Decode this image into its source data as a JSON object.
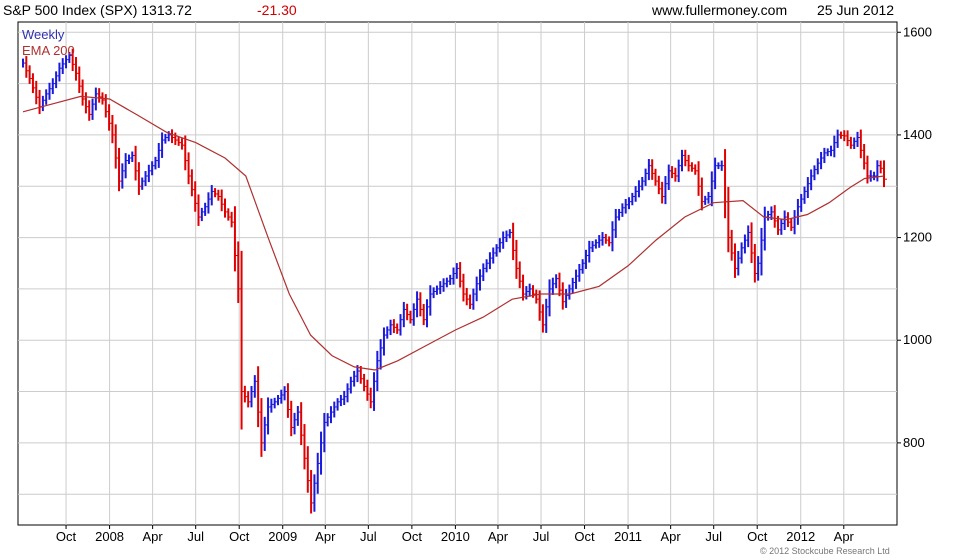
{
  "header": {
    "title": "S&P 500 Index (SPX) 1313.72",
    "change": "-21.30",
    "site": "www.fullermoney.com",
    "date": "25 Jun 2012"
  },
  "footer": {
    "copyright": "© 2012 Stockcube Research Ltd"
  },
  "colors": {
    "up": "#1a1adc",
    "down": "#e00000",
    "ema": "#b03030",
    "grid": "#cccccc",
    "axis": "#000000"
  },
  "chart_data": {
    "type": "line",
    "title": "S&P 500 Index (SPX) 1313.72 -21.30",
    "frequency": "Weekly",
    "legend": [
      "Weekly",
      "EMA 200"
    ],
    "legend_placement": "top-left",
    "y_axis_side": "right",
    "ylim": [
      640,
      1620
    ],
    "grid": true,
    "y_ticks": [
      800,
      1000,
      1200,
      1400,
      1600
    ],
    "x_ticks": [
      "Oct",
      "2008",
      "Apr",
      "Jul",
      "Oct",
      "2009",
      "Apr",
      "Jul",
      "Oct",
      "2010",
      "Apr",
      "Jul",
      "Oct",
      "2011",
      "Apr",
      "Jul",
      "Oct",
      "2012",
      "Apr"
    ],
    "x_tick_dates": [
      "2007-10-01",
      "2008-01-01",
      "2008-04-01",
      "2008-07-01",
      "2008-10-01",
      "2009-01-01",
      "2009-04-01",
      "2009-07-01",
      "2009-10-01",
      "2010-01-01",
      "2010-04-01",
      "2010-07-01",
      "2010-10-01",
      "2011-01-01",
      "2011-04-01",
      "2011-07-01",
      "2011-10-01",
      "2012-01-01",
      "2012-04-01"
    ],
    "x_range": [
      "2007-07-02",
      "2012-06-25"
    ],
    "series": [
      {
        "name": "Weekly",
        "kind": "bars",
        "points": [
          [
            "2007-07-02",
            1540
          ],
          [
            "2007-07-16",
            1510
          ],
          [
            "2007-08-06",
            1455
          ],
          [
            "2007-08-20",
            1480
          ],
          [
            "2007-09-03",
            1500
          ],
          [
            "2007-09-17",
            1530
          ],
          [
            "2007-10-08",
            1555
          ],
          [
            "2007-10-22",
            1520
          ],
          [
            "2007-11-05",
            1470
          ],
          [
            "2007-11-19",
            1440
          ],
          [
            "2007-12-03",
            1480
          ],
          [
            "2007-12-17",
            1468
          ],
          [
            "2008-01-07",
            1400
          ],
          [
            "2008-01-21",
            1310
          ],
          [
            "2008-02-04",
            1350
          ],
          [
            "2008-02-18",
            1360
          ],
          [
            "2008-03-03",
            1300
          ],
          [
            "2008-03-17",
            1320
          ],
          [
            "2008-04-07",
            1350
          ],
          [
            "2008-04-21",
            1390
          ],
          [
            "2008-05-05",
            1400
          ],
          [
            "2008-05-19",
            1390
          ],
          [
            "2008-06-02",
            1380
          ],
          [
            "2008-06-16",
            1320
          ],
          [
            "2008-07-07",
            1240
          ],
          [
            "2008-07-21",
            1260
          ],
          [
            "2008-08-04",
            1290
          ],
          [
            "2008-08-18",
            1280
          ],
          [
            "2008-09-01",
            1250
          ],
          [
            "2008-09-15",
            1230
          ],
          [
            "2008-09-29",
            1100
          ],
          [
            "2008-10-06",
            900
          ],
          [
            "2008-10-20",
            880
          ],
          [
            "2008-11-03",
            920
          ],
          [
            "2008-11-17",
            800
          ],
          [
            "2008-12-01",
            870
          ],
          [
            "2008-12-15",
            880
          ],
          [
            "2009-01-05",
            900
          ],
          [
            "2009-01-19",
            830
          ],
          [
            "2009-02-02",
            860
          ],
          [
            "2009-02-16",
            770
          ],
          [
            "2009-03-02",
            683
          ],
          [
            "2009-03-16",
            760
          ],
          [
            "2009-03-30",
            840
          ],
          [
            "2009-04-13",
            860
          ],
          [
            "2009-04-27",
            880
          ],
          [
            "2009-05-11",
            890
          ],
          [
            "2009-05-25",
            920
          ],
          [
            "2009-06-08",
            940
          ],
          [
            "2009-06-22",
            910
          ],
          [
            "2009-07-06",
            880
          ],
          [
            "2009-07-20",
            960
          ],
          [
            "2009-08-03",
            1010
          ],
          [
            "2009-08-17",
            1030
          ],
          [
            "2009-08-31",
            1020
          ],
          [
            "2009-09-14",
            1060
          ],
          [
            "2009-09-28",
            1040
          ],
          [
            "2009-10-12",
            1080
          ],
          [
            "2009-10-26",
            1040
          ],
          [
            "2009-11-09",
            1090
          ],
          [
            "2009-11-23",
            1100
          ],
          [
            "2009-12-07",
            1110
          ],
          [
            "2009-12-21",
            1120
          ],
          [
            "2010-01-04",
            1140
          ],
          [
            "2010-01-18",
            1090
          ],
          [
            "2010-02-01",
            1070
          ],
          [
            "2010-02-15",
            1110
          ],
          [
            "2010-03-01",
            1140
          ],
          [
            "2010-03-15",
            1160
          ],
          [
            "2010-03-29",
            1180
          ],
          [
            "2010-04-12",
            1200
          ],
          [
            "2010-04-26",
            1210
          ],
          [
            "2010-05-10",
            1140
          ],
          [
            "2010-05-24",
            1090
          ],
          [
            "2010-06-07",
            1100
          ],
          [
            "2010-06-21",
            1080
          ],
          [
            "2010-07-05",
            1030
          ],
          [
            "2010-07-19",
            1100
          ],
          [
            "2010-08-02",
            1120
          ],
          [
            "2010-08-16",
            1075
          ],
          [
            "2010-08-30",
            1100
          ],
          [
            "2010-09-13",
            1125
          ],
          [
            "2010-09-27",
            1150
          ],
          [
            "2010-10-11",
            1180
          ],
          [
            "2010-10-25",
            1190
          ],
          [
            "2010-11-08",
            1200
          ],
          [
            "2010-11-22",
            1190
          ],
          [
            "2010-12-06",
            1240
          ],
          [
            "2010-12-20",
            1258
          ],
          [
            "2011-01-03",
            1270
          ],
          [
            "2011-01-17",
            1290
          ],
          [
            "2011-01-31",
            1310
          ],
          [
            "2011-02-14",
            1340
          ],
          [
            "2011-02-28",
            1310
          ],
          [
            "2011-03-14",
            1280
          ],
          [
            "2011-03-28",
            1330
          ],
          [
            "2011-04-11",
            1320
          ],
          [
            "2011-04-25",
            1360
          ],
          [
            "2011-05-09",
            1340
          ],
          [
            "2011-05-23",
            1330
          ],
          [
            "2011-06-06",
            1270
          ],
          [
            "2011-06-20",
            1280
          ],
          [
            "2011-07-04",
            1340
          ],
          [
            "2011-07-18",
            1340
          ],
          [
            "2011-08-01",
            1200
          ],
          [
            "2011-08-15",
            1140
          ],
          [
            "2011-08-29",
            1180
          ],
          [
            "2011-09-12",
            1210
          ],
          [
            "2011-09-26",
            1130
          ],
          [
            "2011-10-03",
            1150
          ],
          [
            "2011-10-17",
            1240
          ],
          [
            "2011-10-31",
            1250
          ],
          [
            "2011-11-14",
            1215
          ],
          [
            "2011-11-28",
            1240
          ],
          [
            "2011-12-12",
            1220
          ],
          [
            "2011-12-26",
            1260
          ],
          [
            "2012-01-09",
            1290
          ],
          [
            "2012-01-23",
            1320
          ],
          [
            "2012-02-06",
            1345
          ],
          [
            "2012-02-20",
            1365
          ],
          [
            "2012-03-05",
            1370
          ],
          [
            "2012-03-19",
            1400
          ],
          [
            "2012-04-02",
            1398
          ],
          [
            "2012-04-16",
            1380
          ],
          [
            "2012-04-30",
            1395
          ],
          [
            "2012-05-07",
            1370
          ],
          [
            "2012-05-21",
            1320
          ],
          [
            "2012-06-04",
            1320
          ],
          [
            "2012-06-11",
            1340
          ],
          [
            "2012-06-18",
            1335
          ],
          [
            "2012-06-25",
            1313.72
          ]
        ]
      },
      {
        "name": "EMA 200",
        "kind": "line",
        "points": [
          [
            "2007-07-02",
            1445
          ],
          [
            "2007-09-01",
            1460
          ],
          [
            "2007-11-01",
            1475
          ],
          [
            "2008-01-01",
            1470
          ],
          [
            "2008-03-01",
            1438
          ],
          [
            "2008-05-01",
            1405
          ],
          [
            "2008-07-01",
            1385
          ],
          [
            "2008-09-01",
            1355
          ],
          [
            "2008-10-15",
            1320
          ],
          [
            "2008-12-01",
            1200
          ],
          [
            "2009-01-15",
            1090
          ],
          [
            "2009-03-01",
            1010
          ],
          [
            "2009-04-15",
            970
          ],
          [
            "2009-06-01",
            948
          ],
          [
            "2009-07-15",
            942
          ],
          [
            "2009-09-01",
            960
          ],
          [
            "2009-11-01",
            990
          ],
          [
            "2010-01-01",
            1020
          ],
          [
            "2010-03-01",
            1045
          ],
          [
            "2010-05-01",
            1080
          ],
          [
            "2010-07-01",
            1090
          ],
          [
            "2010-09-01",
            1090
          ],
          [
            "2010-11-01",
            1105
          ],
          [
            "2011-01-01",
            1145
          ],
          [
            "2011-03-01",
            1195
          ],
          [
            "2011-05-01",
            1240
          ],
          [
            "2011-07-01",
            1268
          ],
          [
            "2011-09-01",
            1272
          ],
          [
            "2011-10-15",
            1240
          ],
          [
            "2011-12-01",
            1235
          ],
          [
            "2012-01-15",
            1245
          ],
          [
            "2012-03-01",
            1268
          ],
          [
            "2012-04-15",
            1298
          ],
          [
            "2012-05-15",
            1315
          ],
          [
            "2012-06-25",
            1320
          ]
        ]
      }
    ]
  }
}
